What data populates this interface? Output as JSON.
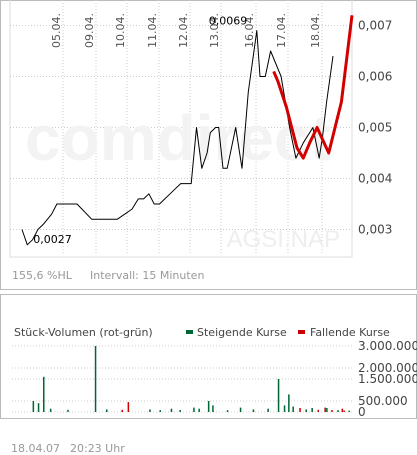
{
  "chart_data": [
    {
      "type": "line",
      "x_ticks": [
        "05.04.",
        "09.04.",
        "10.04.",
        "11.04.",
        "12.04.",
        "13.04.",
        "16.04.",
        "17.04.",
        "18.04."
      ],
      "y_ticks": [
        "0,007",
        "0,006",
        "0,005",
        "0,004",
        "0,003"
      ],
      "ylim": [
        0.0025,
        0.0075
      ],
      "grid": true,
      "series": [
        {
          "color": "#000000",
          "x": [
            0,
            0.5,
            1,
            1.5,
            2,
            2.8,
            3.3,
            4,
            4.5,
            5.05,
            5.2,
            6.6,
            8,
            9,
            10.4,
            11,
            11.5,
            12,
            12.5,
            13,
            13.5,
            14,
            14.5,
            15,
            15.5,
            16,
            16.5,
            17,
            17.5,
            17.8,
            18.3,
            18.6,
            19,
            19.4,
            20.2,
            20.8,
            21.4,
            22.2,
            22.5,
            23,
            23.5,
            24.5,
            24.9,
            25.3,
            25.9,
            26.6,
            27.5,
            27.9,
            28.1,
            28.4,
            28.8,
            29.4
          ],
          "y": [
            0.003,
            0.0027,
            0.0028,
            0.003,
            0.0031,
            0.0033,
            0.0035,
            0.0035,
            0.0035,
            0.0035,
            0.0035,
            0.0032,
            0.0032,
            0.0032,
            0.0034,
            0.0036,
            0.0036,
            0.0037,
            0.0035,
            0.0035,
            0.0036,
            0.0037,
            0.0038,
            0.0039,
            0.0039,
            0.0039,
            0.005,
            0.0042,
            0.0045,
            0.0049,
            0.005,
            0.005,
            0.0042,
            0.0042,
            0.005,
            0.0042,
            0.0057,
            0.0069,
            0.006,
            0.006,
            0.0065,
            0.006,
            0.0055,
            0.005,
            0.0044,
            0.0047,
            0.005,
            0.0046,
            0.0044,
            0.0048,
            0.0055,
            0.0064
          ]
        },
        {
          "color": "#d40000",
          "x": [
            23.8,
            24.2,
            25,
            26,
            26.6,
            27.2,
            27.9,
            29,
            30.2,
            31.2
          ],
          "y": [
            0.0061,
            0.0059,
            0.0054,
            0.0046,
            0.0044,
            0.0047,
            0.005,
            0.0045,
            0.0055,
            0.0072
          ]
        }
      ],
      "annotations": [
        {
          "text": "0,0069",
          "x": 22.2,
          "y": 0.0069
        },
        {
          "text": "0,0027",
          "x": 0.5,
          "y": 0.0027
        }
      ],
      "info_left": "155,6 %HL",
      "info_right": "Intervall: 15 Minuten",
      "watermark_brand": "comdirect",
      "watermark_source": "AGSI.NAP"
    },
    {
      "type": "bar",
      "title": "Stück-Volumen (rot-grün)",
      "legend": [
        {
          "name": "Steigende Kurse",
          "color": "#006633"
        },
        {
          "name": "Fallende Kurse",
          "color": "#cc0000"
        }
      ],
      "legend_position": "top-right",
      "y_ticks": [
        3000000,
        2000000,
        1500000,
        500000,
        0
      ],
      "y_tick_labels": [
        "3.000.000",
        "2.000.000",
        "1.500.000",
        "500.000",
        "0"
      ],
      "ylim": [
        0,
        3000000
      ],
      "bars": [
        {
          "x": 1,
          "v": 500000,
          "c": "g"
        },
        {
          "x": 1.6,
          "v": 400000,
          "c": "g"
        },
        {
          "x": 2.2,
          "v": 1600000,
          "c": "g"
        },
        {
          "x": 3,
          "v": 150000,
          "c": "g"
        },
        {
          "x": 5,
          "v": 100000,
          "c": "g"
        },
        {
          "x": 8.2,
          "v": 3000000,
          "c": "g"
        },
        {
          "x": 9.5,
          "v": 120000,
          "c": "g"
        },
        {
          "x": 11.3,
          "v": 100000,
          "c": "r"
        },
        {
          "x": 12,
          "v": 450000,
          "c": "r"
        },
        {
          "x": 14.5,
          "v": 120000,
          "c": "g"
        },
        {
          "x": 15.7,
          "v": 80000,
          "c": "g"
        },
        {
          "x": 17,
          "v": 150000,
          "c": "g"
        },
        {
          "x": 18,
          "v": 90000,
          "c": "g"
        },
        {
          "x": 19.6,
          "v": 200000,
          "c": "g"
        },
        {
          "x": 20.2,
          "v": 150000,
          "c": "g"
        },
        {
          "x": 21.3,
          "v": 500000,
          "c": "g"
        },
        {
          "x": 21.8,
          "v": 300000,
          "c": "g"
        },
        {
          "x": 23.5,
          "v": 80000,
          "c": "g"
        },
        {
          "x": 25,
          "v": 200000,
          "c": "g"
        },
        {
          "x": 26.5,
          "v": 120000,
          "c": "g"
        },
        {
          "x": 28.2,
          "v": 150000,
          "c": "g"
        },
        {
          "x": 29.4,
          "v": 1500000,
          "c": "g"
        },
        {
          "x": 30.1,
          "v": 300000,
          "c": "g"
        },
        {
          "x": 30.6,
          "v": 800000,
          "c": "g"
        },
        {
          "x": 31.1,
          "v": 250000,
          "c": "g"
        },
        {
          "x": 31.9,
          "v": 180000,
          "c": "r"
        },
        {
          "x": 32.6,
          "v": 120000,
          "c": "g"
        },
        {
          "x": 33.3,
          "v": 180000,
          "c": "g"
        },
        {
          "x": 34,
          "v": 100000,
          "c": "r"
        },
        {
          "x": 34.8,
          "v": 200000,
          "c": "r"
        },
        {
          "x": 35.6,
          "v": 90000,
          "c": "r"
        },
        {
          "x": 36.3,
          "v": 80000,
          "c": "g"
        },
        {
          "x": 37,
          "v": 70000,
          "c": "r"
        },
        {
          "x": 37.6,
          "v": 60000,
          "c": "g"
        },
        {
          "x": 35,
          "v": 180000,
          "c": "g"
        },
        {
          "x": 36.8,
          "v": 150000,
          "c": "r"
        }
      ]
    }
  ],
  "colors": {
    "up": "#006633",
    "down": "#cc0000",
    "grid": "#cccccc",
    "frame": "#bbbbbb"
  },
  "footer": {
    "date": "18.04.07",
    "time": "20:23 Uhr"
  }
}
